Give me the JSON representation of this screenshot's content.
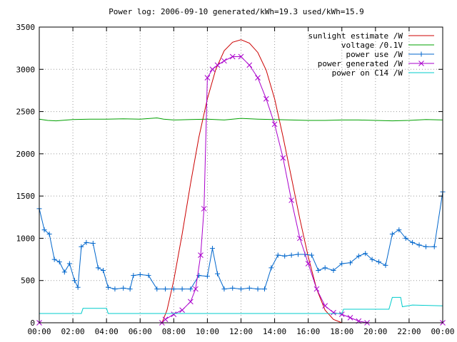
{
  "chart_data": {
    "type": "line",
    "title": "Power log: 2006-09-10 generated/kWh=19.3 used/kWh=15.9",
    "xlabel": "",
    "ylabel": "",
    "xlim": [
      0,
      24
    ],
    "ylim": [
      0,
      3500
    ],
    "x_ticks": [
      "00:00",
      "02:00",
      "04:00",
      "06:00",
      "08:00",
      "10:00",
      "12:00",
      "14:00",
      "16:00",
      "18:00",
      "20:00",
      "22:00",
      "00:00"
    ],
    "y_ticks": [
      0,
      500,
      1000,
      1500,
      2000,
      2500,
      3000,
      3500
    ],
    "grid": true,
    "legend_position": "top-right",
    "series": [
      {
        "name": "sunlight estimate /W",
        "color": "#cc0000",
        "marker": "none",
        "points": [
          [
            0,
            0
          ],
          [
            7.3,
            0
          ],
          [
            7.6,
            150
          ],
          [
            8.0,
            500
          ],
          [
            8.5,
            1050
          ],
          [
            9.0,
            1650
          ],
          [
            9.5,
            2200
          ],
          [
            10.0,
            2650
          ],
          [
            10.5,
            3000
          ],
          [
            11.0,
            3220
          ],
          [
            11.5,
            3320
          ],
          [
            12.0,
            3350
          ],
          [
            12.5,
            3310
          ],
          [
            13.0,
            3200
          ],
          [
            13.5,
            2990
          ],
          [
            14.0,
            2650
          ],
          [
            14.5,
            2200
          ],
          [
            15.0,
            1720
          ],
          [
            15.5,
            1230
          ],
          [
            16.0,
            780
          ],
          [
            16.5,
            400
          ],
          [
            17.0,
            150
          ],
          [
            17.5,
            40
          ],
          [
            18.0,
            0
          ],
          [
            24,
            0
          ]
        ]
      },
      {
        "name": "voltage /0.1V",
        "color": "#00a000",
        "marker": "none",
        "points": [
          [
            0,
            2410
          ],
          [
            0.5,
            2395
          ],
          [
            1,
            2390
          ],
          [
            2,
            2405
          ],
          [
            3,
            2410
          ],
          [
            4,
            2410
          ],
          [
            5,
            2415
          ],
          [
            6,
            2410
          ],
          [
            7,
            2425
          ],
          [
            7.4,
            2410
          ],
          [
            8,
            2400
          ],
          [
            9,
            2405
          ],
          [
            10,
            2410
          ],
          [
            11,
            2400
          ],
          [
            12,
            2420
          ],
          [
            13,
            2410
          ],
          [
            14,
            2405
          ],
          [
            15,
            2400
          ],
          [
            16,
            2395
          ],
          [
            17,
            2395
          ],
          [
            18,
            2400
          ],
          [
            19,
            2400
          ],
          [
            20,
            2395
          ],
          [
            21,
            2390
          ],
          [
            22,
            2395
          ],
          [
            23,
            2405
          ],
          [
            24,
            2400
          ]
        ]
      },
      {
        "name": "power use /W",
        "color": "#0066cc",
        "marker": "plus",
        "points": [
          [
            0,
            1350
          ],
          [
            0.3,
            1100
          ],
          [
            0.6,
            1050
          ],
          [
            0.9,
            750
          ],
          [
            1.2,
            720
          ],
          [
            1.5,
            600
          ],
          [
            1.8,
            700
          ],
          [
            2.1,
            500
          ],
          [
            2.3,
            420
          ],
          [
            2.5,
            900
          ],
          [
            2.8,
            950
          ],
          [
            3.2,
            940
          ],
          [
            3.5,
            650
          ],
          [
            3.8,
            620
          ],
          [
            4.1,
            420
          ],
          [
            4.5,
            400
          ],
          [
            5.0,
            410
          ],
          [
            5.4,
            400
          ],
          [
            5.6,
            560
          ],
          [
            6.0,
            570
          ],
          [
            6.5,
            560
          ],
          [
            7.0,
            400
          ],
          [
            7.5,
            400
          ],
          [
            8.0,
            400
          ],
          [
            8.5,
            400
          ],
          [
            9.0,
            400
          ],
          [
            9.5,
            560
          ],
          [
            10.0,
            550
          ],
          [
            10.3,
            880
          ],
          [
            10.6,
            580
          ],
          [
            11.0,
            400
          ],
          [
            11.5,
            410
          ],
          [
            12.0,
            400
          ],
          [
            12.5,
            410
          ],
          [
            13.0,
            400
          ],
          [
            13.4,
            400
          ],
          [
            13.8,
            650
          ],
          [
            14.2,
            800
          ],
          [
            14.6,
            790
          ],
          [
            15.0,
            800
          ],
          [
            15.4,
            810
          ],
          [
            15.8,
            810
          ],
          [
            16.2,
            800
          ],
          [
            16.6,
            620
          ],
          [
            17.0,
            650
          ],
          [
            17.5,
            620
          ],
          [
            18.0,
            700
          ],
          [
            18.5,
            710
          ],
          [
            19.0,
            790
          ],
          [
            19.4,
            820
          ],
          [
            19.8,
            750
          ],
          [
            20.2,
            720
          ],
          [
            20.6,
            680
          ],
          [
            21.0,
            1050
          ],
          [
            21.4,
            1100
          ],
          [
            21.8,
            1000
          ],
          [
            22.2,
            950
          ],
          [
            22.6,
            920
          ],
          [
            23.0,
            900
          ],
          [
            23.5,
            900
          ],
          [
            24,
            1550
          ]
        ]
      },
      {
        "name": "power generated /W",
        "color": "#aa00cc",
        "marker": "cross",
        "points": [
          [
            0,
            0
          ],
          [
            7.3,
            0
          ],
          [
            7.5,
            40
          ],
          [
            8.0,
            100
          ],
          [
            8.5,
            150
          ],
          [
            9.0,
            250
          ],
          [
            9.3,
            400
          ],
          [
            9.6,
            800
          ],
          [
            9.8,
            1350
          ],
          [
            10.0,
            2900
          ],
          [
            10.3,
            3000
          ],
          [
            10.6,
            3050
          ],
          [
            11.0,
            3100
          ],
          [
            11.5,
            3150
          ],
          [
            12.0,
            3150
          ],
          [
            12.5,
            3050
          ],
          [
            13.0,
            2900
          ],
          [
            13.5,
            2650
          ],
          [
            14.0,
            2350
          ],
          [
            14.5,
            1950
          ],
          [
            15.0,
            1450
          ],
          [
            15.5,
            1000
          ],
          [
            16.0,
            700
          ],
          [
            16.5,
            400
          ],
          [
            17.0,
            200
          ],
          [
            17.5,
            120
          ],
          [
            18.0,
            100
          ],
          [
            18.5,
            60
          ],
          [
            19.0,
            20
          ],
          [
            19.5,
            0
          ],
          [
            24,
            0
          ]
        ]
      },
      {
        "name": "power on C14 /W",
        "color": "#00cccc",
        "marker": "none",
        "points": [
          [
            0,
            110
          ],
          [
            2.5,
            110
          ],
          [
            2.6,
            170
          ],
          [
            4.0,
            170
          ],
          [
            4.1,
            110
          ],
          [
            18.0,
            110
          ],
          [
            18.1,
            160
          ],
          [
            20.8,
            160
          ],
          [
            21.0,
            300
          ],
          [
            21.5,
            300
          ],
          [
            21.6,
            190
          ],
          [
            22.2,
            210
          ],
          [
            24,
            200
          ]
        ]
      }
    ]
  }
}
